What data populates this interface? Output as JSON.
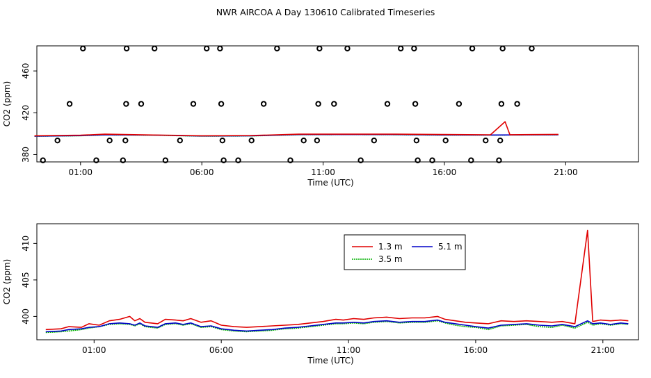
{
  "title": "NWR AIRCOA A  Day 130610  Calibrated Timeseries",
  "colors": {
    "h13": "#e00000",
    "h35": "#00b000",
    "h51": "#0000c8",
    "ref": "#000000"
  },
  "chart_data": [
    {
      "type": "line",
      "panel": "top",
      "xlabel": "Time (UTC)",
      "ylabel": "CO2 (ppm)",
      "xlim": [
        -0.8,
        24.0
      ],
      "ylim": [
        373,
        484
      ],
      "xticks": [
        1,
        6,
        11,
        16,
        21
      ],
      "xtick_labels": [
        "01:00",
        "06:00",
        "11:00",
        "16:00",
        "21:00"
      ],
      "yticks": [
        380,
        420,
        460
      ],
      "ytick_labels": [
        "380",
        "420",
        "460"
      ],
      "reference_points": {
        "name": "",
        "points": [
          [
            -0.55,
            374.5
          ],
          [
            0.05,
            393.5
          ],
          [
            0.55,
            428.5
          ],
          [
            1.1,
            481.5
          ],
          [
            1.65,
            374.5
          ],
          [
            2.2,
            393.5
          ],
          [
            2.75,
            374.5
          ],
          [
            2.85,
            393.5
          ],
          [
            2.88,
            428.5
          ],
          [
            2.9,
            481.5
          ],
          [
            3.5,
            428.5
          ],
          [
            4.05,
            481.5
          ],
          [
            4.5,
            374.5
          ],
          [
            5.1,
            393.5
          ],
          [
            5.65,
            428.5
          ],
          [
            6.2,
            481.5
          ],
          [
            6.75,
            481.5
          ],
          [
            6.8,
            428.5
          ],
          [
            6.85,
            393.5
          ],
          [
            6.9,
            374.5
          ],
          [
            7.5,
            374.5
          ],
          [
            8.05,
            393.5
          ],
          [
            8.55,
            428.5
          ],
          [
            9.1,
            481.5
          ],
          [
            9.65,
            374.5
          ],
          [
            10.2,
            393.5
          ],
          [
            10.75,
            393.5
          ],
          [
            10.8,
            428.5
          ],
          [
            10.85,
            481.5
          ],
          [
            11.45,
            428.5
          ],
          [
            12.0,
            481.5
          ],
          [
            12.55,
            374.5
          ],
          [
            13.1,
            393.5
          ],
          [
            13.65,
            428.5
          ],
          [
            14.2,
            481.5
          ],
          [
            14.75,
            481.5
          ],
          [
            14.8,
            428.5
          ],
          [
            14.85,
            393.5
          ],
          [
            14.9,
            374.5
          ],
          [
            15.5,
            374.5
          ],
          [
            16.05,
            393.5
          ],
          [
            16.6,
            428.5
          ],
          [
            17.1,
            374.5
          ],
          [
            17.15,
            481.5
          ],
          [
            17.7,
            393.5
          ],
          [
            18.25,
            374.5
          ],
          [
            18.3,
            393.5
          ],
          [
            18.35,
            428.5
          ],
          [
            18.4,
            481.5
          ],
          [
            19.0,
            428.5
          ],
          [
            19.6,
            481.5
          ]
        ]
      },
      "series": [
        {
          "name": "1.3 m",
          "color_key": "h13",
          "values": [
            [
              -0.9,
              398.0
            ],
            [
              1.0,
              398.5
            ],
            [
              2.0,
              399.5
            ],
            [
              4.0,
              398.7
            ],
            [
              6.0,
              398.0
            ],
            [
              8.0,
              398.2
            ],
            [
              10.0,
              399.5
            ],
            [
              12.0,
              399.5
            ],
            [
              14.0,
              399.5
            ],
            [
              16.0,
              399.2
            ],
            [
              17.9,
              398.9
            ],
            [
              18.5,
              411.5
            ],
            [
              18.7,
              399.0
            ],
            [
              20.7,
              399.3
            ]
          ]
        },
        {
          "name": "3.5 m",
          "color_key": "h35",
          "values": [
            [
              -0.9,
              397.5
            ],
            [
              1.0,
              398.0
            ],
            [
              2.0,
              398.8
            ],
            [
              4.0,
              398.5
            ],
            [
              6.0,
              397.6
            ],
            [
              8.0,
              397.8
            ],
            [
              10.0,
              399.0
            ],
            [
              12.0,
              399.1
            ],
            [
              14.0,
              399.0
            ],
            [
              16.0,
              398.6
            ],
            [
              17.9,
              398.6
            ],
            [
              20.7,
              398.9
            ]
          ]
        },
        {
          "name": "5.1 m",
          "color_key": "h51",
          "values": [
            [
              -0.9,
              397.6
            ],
            [
              1.0,
              398.1
            ],
            [
              2.0,
              399.0
            ],
            [
              4.0,
              398.6
            ],
            [
              6.0,
              397.8
            ],
            [
              8.0,
              397.9
            ],
            [
              10.0,
              399.2
            ],
            [
              12.0,
              399.2
            ],
            [
              14.0,
              399.2
            ],
            [
              16.0,
              398.8
            ],
            [
              17.9,
              398.7
            ],
            [
              20.7,
              399.0
            ]
          ]
        }
      ]
    },
    {
      "type": "line",
      "panel": "bottom",
      "xlabel": "Time (UTC)",
      "ylabel": "CO2 (ppm)",
      "xlim": [
        -1.25,
        22.4
      ],
      "ylim": [
        396.8,
        412.7
      ],
      "xticks": [
        1,
        6,
        11,
        16,
        21
      ],
      "xtick_labels": [
        "01:00",
        "06:00",
        "11:00",
        "16:00",
        "21:00"
      ],
      "yticks": [
        400,
        405,
        410
      ],
      "ytick_labels": [
        "400",
        "405",
        "410"
      ],
      "legend": {
        "position": "top-center",
        "entries": [
          "1.3 m",
          "3.5 m",
          "5.1 m"
        ]
      },
      "series": [
        {
          "name": "1.3 m",
          "color_key": "h13",
          "values": [
            [
              -0.9,
              398.2
            ],
            [
              -0.3,
              398.3
            ],
            [
              0.0,
              398.6
            ],
            [
              0.5,
              398.5
            ],
            [
              0.8,
              399.0
            ],
            [
              1.2,
              398.8
            ],
            [
              1.6,
              399.4
            ],
            [
              2.0,
              399.6
            ],
            [
              2.4,
              400.0
            ],
            [
              2.6,
              399.4
            ],
            [
              2.8,
              399.7
            ],
            [
              3.0,
              399.2
            ],
            [
              3.5,
              399.0
            ],
            [
              3.8,
              399.6
            ],
            [
              4.2,
              399.5
            ],
            [
              4.5,
              399.4
            ],
            [
              4.8,
              399.7
            ],
            [
              5.2,
              399.2
            ],
            [
              5.6,
              399.4
            ],
            [
              6.0,
              398.8
            ],
            [
              6.5,
              398.6
            ],
            [
              7.0,
              398.5
            ],
            [
              7.5,
              398.6
            ],
            [
              8.0,
              398.7
            ],
            [
              8.5,
              398.8
            ],
            [
              9.0,
              398.9
            ],
            [
              9.5,
              399.1
            ],
            [
              10.0,
              399.3
            ],
            [
              10.5,
              399.6
            ],
            [
              10.8,
              399.5
            ],
            [
              11.2,
              399.7
            ],
            [
              11.6,
              399.6
            ],
            [
              12.0,
              399.8
            ],
            [
              12.5,
              399.9
            ],
            [
              13.0,
              399.7
            ],
            [
              13.5,
              399.8
            ],
            [
              14.0,
              399.8
            ],
            [
              14.5,
              400.0
            ],
            [
              14.8,
              399.6
            ],
            [
              15.2,
              399.4
            ],
            [
              15.6,
              399.2
            ],
            [
              16.0,
              399.1
            ],
            [
              16.5,
              399.0
            ],
            [
              17.0,
              399.4
            ],
            [
              17.5,
              399.3
            ],
            [
              18.0,
              399.4
            ],
            [
              18.5,
              399.3
            ],
            [
              19.0,
              399.2
            ],
            [
              19.4,
              399.3
            ],
            [
              19.9,
              399.0
            ],
            [
              20.4,
              411.8
            ],
            [
              20.6,
              399.3
            ],
            [
              20.9,
              399.5
            ],
            [
              21.3,
              399.4
            ],
            [
              21.7,
              399.5
            ],
            [
              22.0,
              399.4
            ]
          ]
        },
        {
          "name": "3.5 m",
          "color_key": "h35",
          "values": [
            [
              -0.9,
              397.8
            ],
            [
              -0.3,
              397.9
            ],
            [
              0.0,
              398.0
            ],
            [
              0.5,
              398.2
            ],
            [
              0.8,
              398.4
            ],
            [
              1.2,
              398.6
            ],
            [
              1.6,
              398.9
            ],
            [
              2.0,
              399.0
            ],
            [
              2.4,
              398.9
            ],
            [
              2.6,
              398.7
            ],
            [
              2.8,
              399.0
            ],
            [
              3.0,
              398.6
            ],
            [
              3.5,
              398.4
            ],
            [
              3.8,
              398.9
            ],
            [
              4.2,
              399.0
            ],
            [
              4.5,
              398.8
            ],
            [
              4.8,
              399.0
            ],
            [
              5.2,
              398.5
            ],
            [
              5.6,
              398.6
            ],
            [
              6.0,
              398.2
            ],
            [
              6.5,
              398.0
            ],
            [
              7.0,
              397.9
            ],
            [
              7.5,
              398.0
            ],
            [
              8.0,
              398.1
            ],
            [
              8.5,
              398.3
            ],
            [
              9.0,
              398.4
            ],
            [
              9.5,
              398.6
            ],
            [
              10.0,
              398.8
            ],
            [
              10.5,
              399.0
            ],
            [
              10.8,
              399.0
            ],
            [
              11.2,
              399.1
            ],
            [
              11.6,
              399.0
            ],
            [
              12.0,
              399.2
            ],
            [
              12.5,
              399.3
            ],
            [
              13.0,
              399.1
            ],
            [
              13.5,
              399.2
            ],
            [
              14.0,
              399.2
            ],
            [
              14.5,
              399.4
            ],
            [
              14.8,
              399.1
            ],
            [
              15.2,
              398.8
            ],
            [
              15.6,
              398.6
            ],
            [
              16.0,
              398.5
            ],
            [
              16.5,
              398.2
            ],
            [
              17.0,
              398.7
            ],
            [
              17.5,
              398.8
            ],
            [
              18.0,
              398.9
            ],
            [
              18.5,
              398.6
            ],
            [
              19.0,
              398.5
            ],
            [
              19.4,
              398.8
            ],
            [
              19.9,
              398.4
            ],
            [
              20.4,
              399.2
            ],
            [
              20.6,
              398.8
            ],
            [
              20.9,
              399.0
            ],
            [
              21.3,
              398.8
            ],
            [
              21.7,
              399.0
            ],
            [
              22.0,
              398.9
            ]
          ]
        },
        {
          "name": "5.1 m",
          "color_key": "h51",
          "values": [
            [
              -0.9,
              397.9
            ],
            [
              -0.3,
              398.0
            ],
            [
              0.0,
              398.2
            ],
            [
              0.5,
              398.3
            ],
            [
              0.8,
              398.5
            ],
            [
              1.2,
              398.6
            ],
            [
              1.6,
              399.0
            ],
            [
              2.0,
              399.1
            ],
            [
              2.4,
              399.0
            ],
            [
              2.6,
              398.8
            ],
            [
              2.8,
              399.1
            ],
            [
              3.0,
              398.7
            ],
            [
              3.5,
              398.5
            ],
            [
              3.8,
              399.0
            ],
            [
              4.2,
              399.1
            ],
            [
              4.5,
              398.9
            ],
            [
              4.8,
              399.1
            ],
            [
              5.2,
              398.6
            ],
            [
              5.6,
              398.7
            ],
            [
              6.0,
              398.3
            ],
            [
              6.5,
              398.1
            ],
            [
              7.0,
              398.0
            ],
            [
              7.5,
              398.1
            ],
            [
              8.0,
              398.2
            ],
            [
              8.5,
              398.4
            ],
            [
              9.0,
              398.5
            ],
            [
              9.5,
              398.7
            ],
            [
              10.0,
              398.9
            ],
            [
              10.5,
              399.1
            ],
            [
              10.8,
              399.1
            ],
            [
              11.2,
              399.2
            ],
            [
              11.6,
              399.1
            ],
            [
              12.0,
              399.3
            ],
            [
              12.5,
              399.4
            ],
            [
              13.0,
              399.2
            ],
            [
              13.5,
              399.3
            ],
            [
              14.0,
              399.3
            ],
            [
              14.5,
              399.5
            ],
            [
              14.8,
              399.2
            ],
            [
              15.2,
              399.0
            ],
            [
              15.6,
              398.8
            ],
            [
              16.0,
              398.6
            ],
            [
              16.5,
              398.4
            ],
            [
              17.0,
              398.8
            ],
            [
              17.5,
              398.9
            ],
            [
              18.0,
              399.0
            ],
            [
              18.5,
              398.8
            ],
            [
              19.0,
              398.7
            ],
            [
              19.4,
              398.9
            ],
            [
              19.9,
              398.6
            ],
            [
              20.4,
              399.4
            ],
            [
              20.6,
              399.0
            ],
            [
              20.9,
              399.1
            ],
            [
              21.3,
              398.9
            ],
            [
              21.7,
              399.1
            ],
            [
              22.0,
              399.0
            ]
          ]
        }
      ]
    }
  ]
}
